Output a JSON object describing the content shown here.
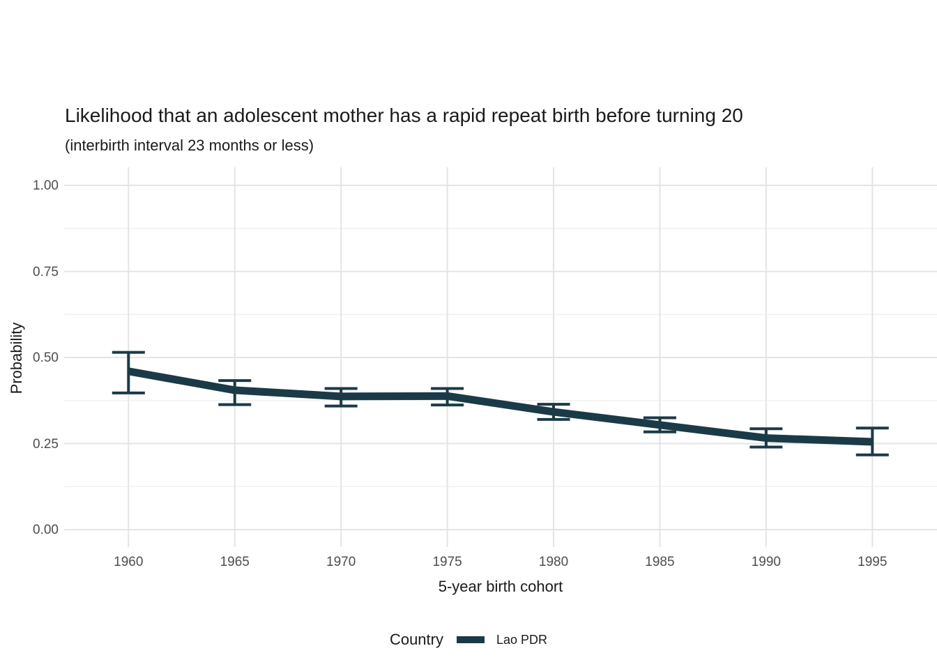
{
  "title": "Likelihood that an adolescent mother has a rapid repeat birth before turning 20",
  "subtitle": "(interbirth interval 23 months or less)",
  "chart_data": {
    "type": "line",
    "title": "Likelihood that an adolescent mother has a rapid repeat birth before turning 20",
    "subtitle": "(interbirth interval 23 months or less)",
    "xlabel": "5-year birth cohort",
    "ylabel": "Probability",
    "x": [
      1960,
      1965,
      1970,
      1975,
      1980,
      1985,
      1990,
      1995
    ],
    "x_tick_labels": [
      "1960",
      "1965",
      "1970",
      "1975",
      "1980",
      "1985",
      "1990",
      "1995"
    ],
    "y_ticks": [
      0.0,
      0.25,
      0.5,
      0.75,
      1.0
    ],
    "y_tick_labels": [
      "0.00",
      "0.25",
      "0.50",
      "0.75",
      "1.00"
    ],
    "y_minor_ticks": [
      0.125,
      0.375,
      0.625,
      0.875
    ],
    "xlim": [
      1957,
      1998
    ],
    "ylim": [
      -0.05,
      1.05
    ],
    "grid": "horizontal major+minor, vertical major only",
    "legend": {
      "title": "Country",
      "position": "bottom",
      "entries": [
        {
          "label": "Lao PDR",
          "color": "#1b3a47"
        }
      ]
    },
    "series": [
      {
        "name": "Lao PDR",
        "values": [
          0.46,
          0.405,
          0.387,
          0.388,
          0.342,
          0.304,
          0.266,
          0.255
        ],
        "ci_lower": [
          0.397,
          0.363,
          0.359,
          0.362,
          0.32,
          0.284,
          0.24,
          0.217
        ],
        "ci_upper": [
          0.515,
          0.433,
          0.41,
          0.41,
          0.364,
          0.325,
          0.293,
          0.295
        ],
        "color": "#1b3a47"
      }
    ]
  },
  "legend": {
    "title": "Country",
    "entry_label": "Lao PDR"
  },
  "colors": {
    "series": "#1b3a47",
    "grid_major": "#e4e4e4",
    "grid_minor": "#f0f0f0",
    "tick_text": "#4d4d4d",
    "text": "#1a1a1a",
    "background": "#ffffff"
  }
}
